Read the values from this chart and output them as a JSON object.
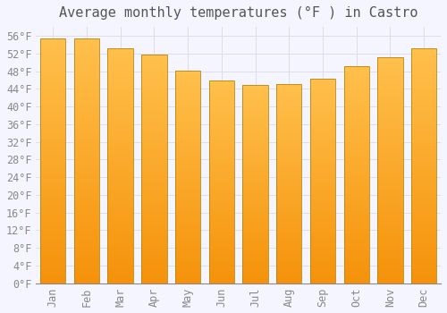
{
  "title": "Average monthly temperatures (°F ) in Castro",
  "months": [
    "Jan",
    "Feb",
    "Mar",
    "Apr",
    "May",
    "Jun",
    "Jul",
    "Aug",
    "Sep",
    "Oct",
    "Nov",
    "Dec"
  ],
  "values": [
    55.4,
    55.4,
    53.2,
    51.8,
    48.2,
    45.9,
    44.8,
    45.1,
    46.2,
    49.1,
    51.1,
    53.2
  ],
  "bar_color_top": "#FFC04C",
  "bar_color_bottom": "#F5920A",
  "bar_edge_color": "#B8860B",
  "background_color": "#F5F5FF",
  "plot_bg_color": "#F5F5FF",
  "grid_color": "#DDDDEE",
  "ylim": [
    0,
    58
  ],
  "yticks": [
    0,
    4,
    8,
    12,
    16,
    20,
    24,
    28,
    32,
    36,
    40,
    44,
    48,
    52,
    56
  ],
  "title_fontsize": 11,
  "tick_fontsize": 8.5,
  "font_family": "monospace"
}
